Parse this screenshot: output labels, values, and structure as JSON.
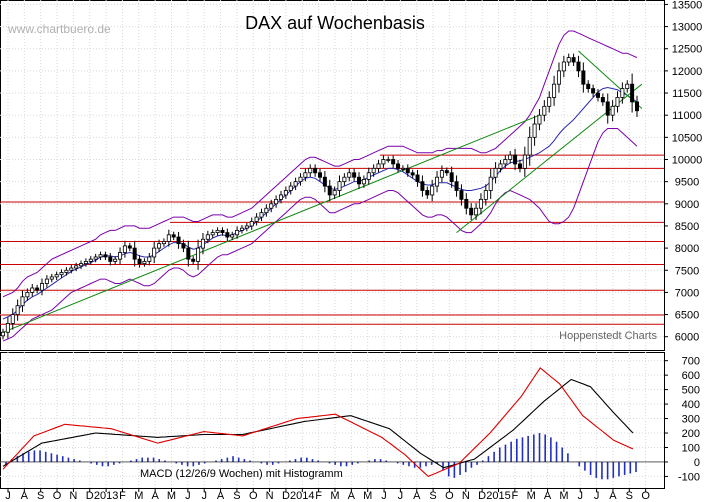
{
  "chart_data": [
    {
      "type": "candlestick",
      "title": "DAX auf Wochenbasis",
      "watermark": "www.chartbuero.de",
      "source_label": "Hoppenstedt Charts",
      "ylim": [
        5700,
        13600
      ],
      "y_ticks": [
        6000,
        6500,
        7000,
        7500,
        8000,
        8500,
        9000,
        9500,
        10000,
        10500,
        11000,
        11500,
        12000,
        12500,
        13000,
        13500
      ],
      "y_tick_labels": [
        "6000",
        "6500",
        "7000",
        "7500",
        "8000",
        "8500",
        "9000",
        "9500",
        "10000",
        "10500",
        "11000",
        "11500",
        "12000",
        "12500",
        "13000",
        "13500"
      ],
      "x_labels": [
        "J",
        "A",
        "S",
        "O",
        "N",
        "D",
        "2013",
        "F",
        "M",
        "A",
        "M",
        "J",
        "J",
        "A",
        "S",
        "O",
        "N",
        "D",
        "2014",
        "F",
        "M",
        "A",
        "M",
        "J",
        "J",
        "A",
        "S",
        "O",
        "N",
        "D",
        "2015",
        "F",
        "M",
        "A",
        "M",
        "J",
        "J",
        "A",
        "S",
        "O"
      ],
      "support_lines": [
        6280,
        6490,
        7050,
        7630,
        8150,
        8580,
        9040,
        9800,
        10100
      ],
      "close_series": [
        6100,
        6300,
        6500,
        6700,
        6900,
        7000,
        7100,
        7050,
        7200,
        7300,
        7350,
        7400,
        7450,
        7500,
        7550,
        7600,
        7650,
        7700,
        7750,
        7800,
        7850,
        7800,
        7700,
        7750,
        7900,
        8050,
        8000,
        7750,
        7650,
        7700,
        7800,
        8000,
        8100,
        8150,
        8300,
        8250,
        8100,
        8000,
        7750,
        7700,
        8000,
        8200,
        8300,
        8350,
        8400,
        8350,
        8250,
        8300,
        8400,
        8450,
        8500,
        8600,
        8700,
        8800,
        8900,
        9000,
        9100,
        9200,
        9300,
        9400,
        9500,
        9600,
        9700,
        9800,
        9700,
        9600,
        9400,
        9200,
        9300,
        9500,
        9600,
        9700,
        9600,
        9450,
        9550,
        9700,
        9800,
        9900,
        10000,
        10000,
        9900,
        9800,
        9800,
        9700,
        9650,
        9500,
        9300,
        9200,
        9400,
        9600,
        9750,
        9700,
        9500,
        9300,
        9100,
        8900,
        8750,
        8900,
        9100,
        9300,
        9600,
        9800,
        9900,
        10000,
        10100,
        9900,
        9800,
        10100,
        10500,
        10800,
        11000,
        11200,
        11400,
        11700,
        12000,
        12200,
        12300,
        12200,
        12000,
        11700,
        11600,
        11500,
        11400,
        11300,
        11000,
        11200,
        11400,
        11600,
        11700,
        11300,
        11100
      ],
      "upper_band": [
        6900,
        6950,
        7000,
        7100,
        7250,
        7350,
        7400,
        7450,
        7550,
        7650,
        7750,
        7800,
        7850,
        7900,
        7950,
        8000,
        8050,
        8100,
        8150,
        8200,
        8300,
        8350,
        8400,
        8400,
        8450,
        8500,
        8500,
        8500,
        8450,
        8450,
        8450,
        8500,
        8550,
        8600,
        8650,
        8700,
        8700,
        8700,
        8650,
        8600,
        8600,
        8650,
        8700,
        8750,
        8750,
        8750,
        8700,
        8700,
        8750,
        8800,
        8850,
        8900,
        9000,
        9100,
        9200,
        9300,
        9400,
        9500,
        9600,
        9700,
        9800,
        9900,
        10000,
        10050,
        10050,
        10000,
        9950,
        9900,
        9850,
        9850,
        9900,
        9950,
        10000,
        10000,
        10050,
        10100,
        10150,
        10200,
        10250,
        10300,
        10300,
        10300,
        10300,
        10250,
        10200,
        10150,
        10150,
        10150,
        10150,
        10200,
        10200,
        10250,
        10250,
        10250,
        10250,
        10250,
        10250,
        10200,
        10150,
        10150,
        10200,
        10250,
        10350,
        10450,
        10550,
        10650,
        10750,
        10850,
        11000,
        11200,
        11400,
        11700,
        12000,
        12300,
        12600,
        12800,
        12900,
        12900,
        12850,
        12800,
        12750,
        12700,
        12650,
        12600,
        12550,
        12500,
        12450,
        12400,
        12400,
        12350,
        12300
      ],
      "lower_band": [
        5900,
        5950,
        6000,
        6100,
        6200,
        6300,
        6400,
        6450,
        6500,
        6550,
        6600,
        6700,
        6800,
        6900,
        7000,
        7050,
        7100,
        7150,
        7200,
        7250,
        7300,
        7300,
        7250,
        7200,
        7200,
        7250,
        7300,
        7250,
        7200,
        7150,
        7150,
        7200,
        7300,
        7400,
        7500,
        7550,
        7550,
        7500,
        7400,
        7350,
        7400,
        7500,
        7600,
        7700,
        7800,
        7850,
        7850,
        7900,
        7950,
        8000,
        8050,
        8100,
        8200,
        8300,
        8400,
        8500,
        8600,
        8700,
        8800,
        8900,
        9000,
        9100,
        9150,
        9150,
        9100,
        9000,
        8900,
        8800,
        8800,
        8850,
        8900,
        8950,
        9000,
        9000,
        9050,
        9100,
        9150,
        9200,
        9250,
        9300,
        9300,
        9250,
        9150,
        9050,
        8950,
        8850,
        8750,
        8700,
        8700,
        8750,
        8750,
        8700,
        8600,
        8500,
        8400,
        8350,
        8350,
        8450,
        8550,
        8650,
        8800,
        9000,
        9150,
        9250,
        9300,
        9250,
        9200,
        9150,
        9100,
        9000,
        8900,
        8750,
        8600,
        8550,
        8550,
        8600,
        8700,
        8900,
        9200,
        9500,
        9800,
        10100,
        10400,
        10600,
        10700,
        10700,
        10700,
        10600,
        10500,
        10400,
        10300
      ],
      "trend_lines": [
        {
          "from": [
            0,
            6100
          ],
          "to": [
            110,
            11000
          ]
        },
        {
          "from": [
            93,
            8350
          ],
          "to": [
            131,
            11700
          ]
        },
        {
          "from": [
            118,
            12450
          ],
          "to": [
            131,
            11150
          ]
        }
      ]
    },
    {
      "type": "line",
      "title": "MACD (12/26/9 Wochen) mit Histogramm",
      "ylim": [
        -180,
        760
      ],
      "y_ticks": [
        -100,
        0,
        100,
        200,
        300,
        400,
        500,
        600,
        700
      ],
      "y_tick_labels": [
        "-100",
        "0",
        "100",
        "200",
        "300",
        "400",
        "500",
        "600",
        "700"
      ],
      "series": [
        {
          "name": "MACD",
          "color": "#dd0000"
        },
        {
          "name": "Signal",
          "color": "#000000"
        },
        {
          "name": "Histogramm",
          "color": "#2030c0"
        }
      ],
      "macd_keypoints": [
        [
          0,
          -50
        ],
        [
          8,
          180
        ],
        [
          16,
          260
        ],
        [
          28,
          230
        ],
        [
          40,
          130
        ],
        [
          52,
          210
        ],
        [
          62,
          180
        ],
        [
          76,
          300
        ],
        [
          86,
          330
        ],
        [
          98,
          170
        ],
        [
          104,
          50
        ],
        [
          110,
          -100
        ],
        [
          118,
          -10
        ],
        [
          126,
          200
        ],
        [
          134,
          450
        ],
        [
          139,
          650
        ],
        [
          144,
          540
        ],
        [
          150,
          320
        ],
        [
          158,
          150
        ],
        [
          163,
          90
        ]
      ],
      "signal_keypoints": [
        [
          0,
          -30
        ],
        [
          10,
          130
        ],
        [
          24,
          200
        ],
        [
          40,
          170
        ],
        [
          52,
          190
        ],
        [
          62,
          190
        ],
        [
          78,
          280
        ],
        [
          90,
          320
        ],
        [
          100,
          230
        ],
        [
          108,
          60
        ],
        [
          114,
          -40
        ],
        [
          122,
          20
        ],
        [
          132,
          220
        ],
        [
          140,
          420
        ],
        [
          147,
          570
        ],
        [
          152,
          520
        ],
        [
          158,
          340
        ],
        [
          163,
          200
        ]
      ],
      "histogram": [
        -20,
        20,
        40,
        60,
        70,
        80,
        80,
        70,
        60,
        50,
        40,
        30,
        20,
        10,
        0,
        -10,
        -20,
        -30,
        -30,
        -20,
        -10,
        0,
        10,
        20,
        30,
        30,
        30,
        20,
        10,
        0,
        -10,
        -20,
        -30,
        -30,
        -20,
        -10,
        0,
        10,
        20,
        30,
        40,
        30,
        20,
        10,
        0,
        -10,
        -20,
        -20,
        -10,
        0,
        10,
        20,
        30,
        30,
        20,
        10,
        0,
        -10,
        -20,
        -30,
        -30,
        -20,
        -10,
        0,
        10,
        20,
        20,
        10,
        0,
        -10,
        -20,
        -30,
        -40,
        -40,
        -30,
        -20,
        -10,
        -60,
        -100,
        -110,
        -90,
        -70,
        -40,
        -20,
        10,
        40,
        70,
        100,
        120,
        140,
        160,
        170,
        180,
        190,
        200,
        190,
        170,
        140,
        100,
        60,
        0,
        -30,
        -60,
        -90,
        -110,
        -120,
        -120,
        -110,
        -100,
        -90,
        -80,
        -70
      ]
    }
  ]
}
